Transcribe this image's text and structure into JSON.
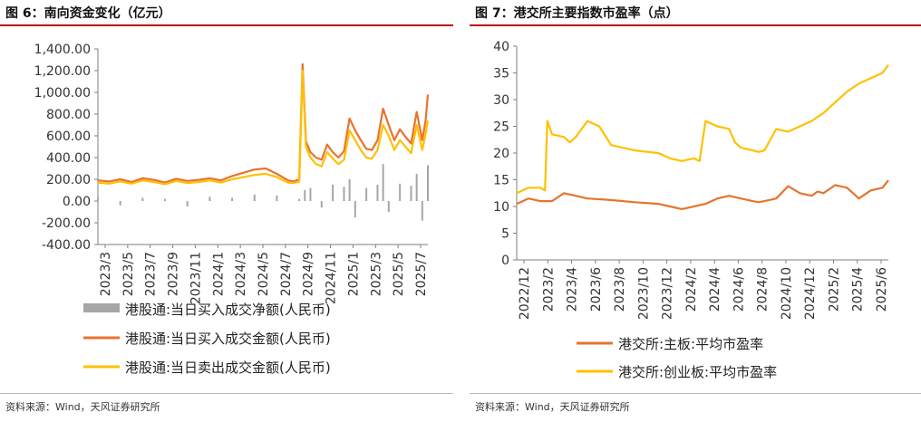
{
  "colors": {
    "net": "#a6a6a6",
    "buy": "#e8732c",
    "sell": "#ffc000",
    "main_board": "#e8732c",
    "gem": "#ffc000",
    "title_rule": "#c00000"
  },
  "figures": {
    "left": {
      "title": "图 6：南向资金变化（亿元）",
      "source": "资料来源：Wind，天风证券研究所"
    },
    "right": {
      "title": "图 7：港交所主要指数市盈率（点）",
      "source": "资料来源：Wind，天风证券研究所"
    }
  },
  "chart_data": [
    {
      "type": "line",
      "title": "南向资金变化（亿元）",
      "xlabel": "",
      "ylabel": "亿元",
      "ylim": [
        -400,
        1400
      ],
      "y_ticks": [
        -400,
        -200,
        0,
        200,
        400,
        600,
        800,
        1000,
        1200,
        1400
      ],
      "y_tick_labels": [
        "-400.00",
        "-200.00",
        "0.00",
        "200.00",
        "400.00",
        "600.00",
        "800.00",
        "1,000.00",
        "1,200.00",
        "1,400.00"
      ],
      "x_tick_labels": [
        "2023/3",
        "2023/5",
        "2023/7",
        "2023/9",
        "2023/11",
        "2024/1",
        "2024/3",
        "2024/5",
        "2024/7",
        "2024/9",
        "2024/11",
        "2025/1",
        "2025/3",
        "2025/5",
        "2025/7"
      ],
      "x_range": [
        0,
        29.5
      ],
      "series": [
        {
          "name": "港股通:当日买入成交金额(人民币)",
          "kind": "line",
          "x": [
            0,
            1,
            2,
            3,
            4,
            5,
            6,
            7,
            8,
            9,
            10,
            11,
            12,
            13,
            14,
            15,
            16,
            17,
            17.5,
            18,
            18.3,
            18.6,
            19,
            19.5,
            20,
            20.5,
            21,
            21.5,
            22,
            22.5,
            23,
            23.5,
            24,
            24.5,
            25,
            25.5,
            26,
            26.5,
            27,
            27.5,
            28,
            28.5,
            29,
            29.3,
            29.5
          ],
          "values": [
            190,
            180,
            200,
            175,
            210,
            195,
            170,
            205,
            185,
            195,
            210,
            190,
            230,
            260,
            290,
            300,
            250,
            190,
            180,
            200,
            1260,
            550,
            450,
            400,
            380,
            520,
            450,
            400,
            460,
            760,
            650,
            560,
            480,
            470,
            560,
            850,
            700,
            560,
            660,
            590,
            530,
            820,
            560,
            740,
            980
          ]
        },
        {
          "name": "港股通:当日卖出成交金额(人民币)",
          "kind": "line",
          "x": [
            0,
            1,
            2,
            3,
            4,
            5,
            6,
            7,
            8,
            9,
            10,
            11,
            12,
            13,
            14,
            15,
            16,
            17,
            17.5,
            18,
            18.3,
            18.6,
            19,
            19.5,
            20,
            20.5,
            21,
            21.5,
            22,
            22.5,
            23,
            23.5,
            24,
            24.5,
            25,
            25.5,
            26,
            26.5,
            27,
            27.5,
            28,
            28.5,
            29,
            29.3,
            29.5
          ],
          "values": [
            170,
            160,
            180,
            160,
            190,
            175,
            155,
            185,
            165,
            175,
            190,
            170,
            200,
            220,
            240,
            250,
            220,
            170,
            165,
            180,
            1200,
            500,
            400,
            340,
            320,
            450,
            390,
            340,
            380,
            650,
            560,
            470,
            400,
            390,
            470,
            700,
            600,
            470,
            560,
            500,
            440,
            700,
            470,
            620,
            740
          ]
        },
        {
          "name": "港股通:当日买入成交净额(人民币)",
          "kind": "bar",
          "x": [
            0,
            2,
            4,
            6,
            8,
            10,
            12,
            14,
            16,
            18,
            18.5,
            19,
            20,
            21,
            22,
            22.5,
            23,
            24,
            25,
            25.5,
            26,
            27,
            28,
            28.5,
            29,
            29.5
          ],
          "values": [
            30,
            -40,
            30,
            20,
            -50,
            40,
            30,
            60,
            50,
            20,
            100,
            120,
            -60,
            150,
            130,
            200,
            -150,
            120,
            150,
            340,
            -100,
            160,
            140,
            250,
            -180,
            330
          ]
        }
      ],
      "legend": [
        "港股通:当日买入成交净额(人民币)",
        "港股通:当日买入成交金额(人民币)",
        "港股通:当日卖出成交金额(人民币)"
      ],
      "legend_position": "bottom"
    },
    {
      "type": "line",
      "title": "港交所主要指数市盈率（点）",
      "xlabel": "",
      "ylabel": "点",
      "ylim": [
        0,
        40
      ],
      "y_ticks": [
        0,
        5,
        10,
        15,
        20,
        25,
        30,
        35,
        40
      ],
      "y_tick_labels": [
        "0",
        "5",
        "10",
        "15",
        "20",
        "25",
        "30",
        "35",
        "40"
      ],
      "x_tick_labels": [
        "2022/12",
        "2023/2",
        "2023/4",
        "2023/6",
        "2023/8",
        "2023/10",
        "2023/12",
        "2024/2",
        "2024/4",
        "2024/6",
        "2024/8",
        "2024/10",
        "2024/12",
        "2025/2",
        "2025/4",
        "2025/6"
      ],
      "x_range": [
        0,
        31.5
      ],
      "series": [
        {
          "name": "港交所:主板:平均市盈率",
          "kind": "line",
          "x": [
            0,
            1,
            2,
            3,
            4,
            5,
            6,
            8,
            10,
            12,
            13,
            14,
            16,
            17,
            18,
            19,
            20,
            20.5,
            21,
            22,
            23,
            24,
            25,
            25.5,
            26,
            27,
            28,
            29,
            30,
            31,
            31.5
          ],
          "values": [
            10.5,
            11.5,
            11,
            11,
            12.5,
            12,
            11.5,
            11.2,
            10.8,
            10.5,
            10,
            9.5,
            10.5,
            11.5,
            12,
            11.5,
            11,
            10.8,
            11,
            11.5,
            13.8,
            12.5,
            12,
            12.8,
            12.5,
            14,
            13.5,
            11.5,
            13,
            13.5,
            14.9
          ]
        },
        {
          "name": "港交所:创业板:平均市盈率",
          "kind": "line",
          "x": [
            0,
            1,
            2,
            2.4,
            2.6,
            3,
            4,
            4.5,
            5,
            6,
            7,
            8,
            10,
            12,
            13,
            14,
            15,
            15.5,
            16,
            17,
            18,
            18.5,
            19,
            20,
            20.5,
            21,
            22,
            23,
            24,
            25,
            26,
            27,
            28,
            29,
            30,
            31,
            31.5
          ],
          "values": [
            12.5,
            13.5,
            13.5,
            13,
            26,
            23.5,
            23,
            22,
            23,
            26,
            25,
            21.5,
            20.5,
            20,
            19,
            18.5,
            19,
            18.5,
            26,
            25,
            24.5,
            22,
            21,
            20.5,
            20.2,
            20.5,
            24.5,
            24,
            25,
            26,
            27.5,
            29.5,
            31.5,
            33,
            34,
            35,
            36.5
          ]
        }
      ],
      "legend": [
        "港交所:主板:平均市盈率",
        "港交所:创业板:平均市盈率"
      ],
      "legend_position": "bottom"
    }
  ]
}
